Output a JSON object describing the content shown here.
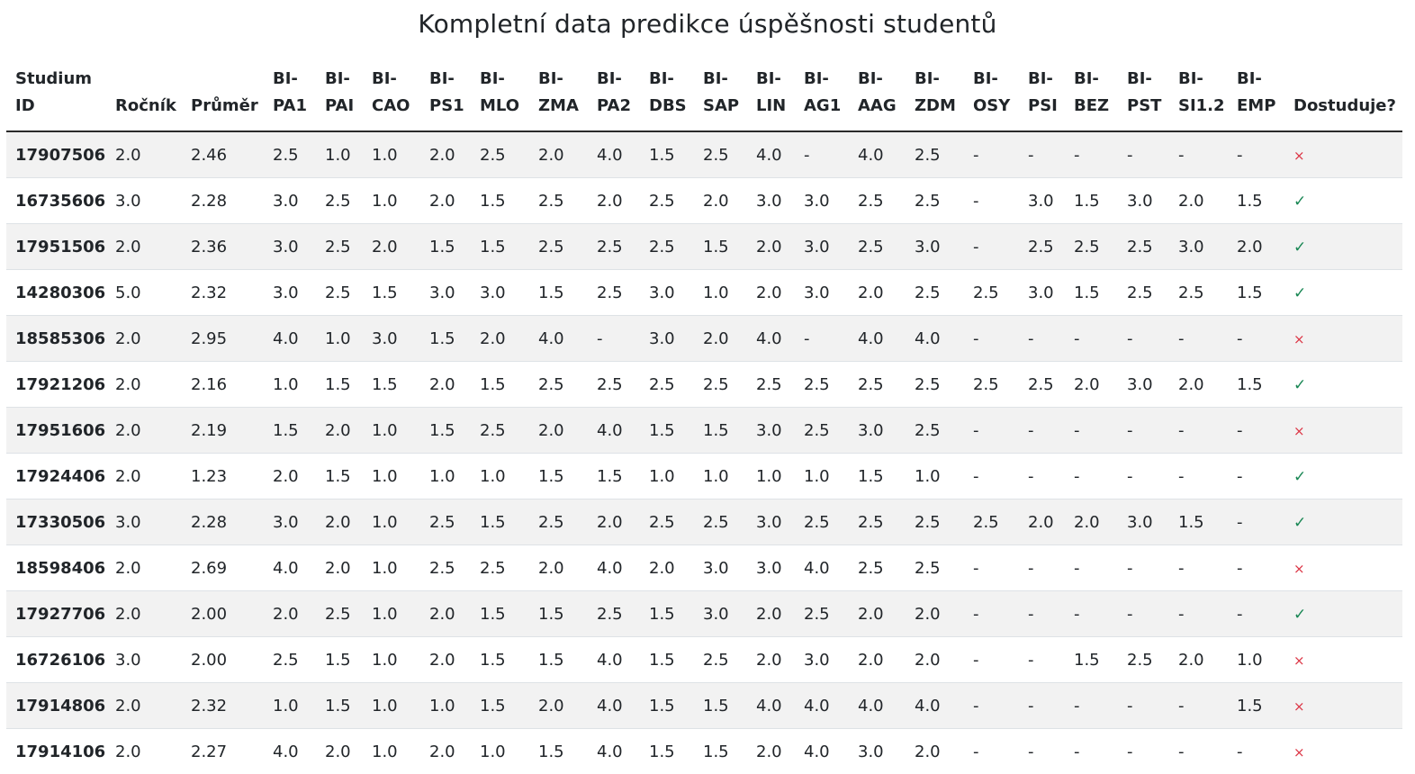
{
  "title": "Kompletní data predikce úspěšnosti studentů",
  "columns": [
    [
      "Studium",
      "ID"
    ],
    [
      "",
      "Ročník"
    ],
    [
      "",
      "Průměr"
    ],
    [
      "BI-",
      "PA1"
    ],
    [
      "BI-",
      "PAI"
    ],
    [
      "BI-",
      "CAO"
    ],
    [
      "BI-",
      "PS1"
    ],
    [
      "BI-",
      "MLO"
    ],
    [
      "BI-",
      "ZMA"
    ],
    [
      "BI-",
      "PA2"
    ],
    [
      "BI-",
      "DBS"
    ],
    [
      "BI-",
      "SAP"
    ],
    [
      "BI-",
      "LIN"
    ],
    [
      "BI-",
      "AG1"
    ],
    [
      "BI-",
      "AAG"
    ],
    [
      "BI-",
      "ZDM"
    ],
    [
      "BI-",
      "OSY"
    ],
    [
      "BI-",
      "PSI"
    ],
    [
      "BI-",
      "BEZ"
    ],
    [
      "BI-",
      "PST"
    ],
    [
      "BI-",
      "SI1.2"
    ],
    [
      "BI-",
      "EMP"
    ],
    [
      "",
      "Dostuduje?"
    ]
  ],
  "status_glyphs": {
    "yes": "✓",
    "no": "×"
  },
  "colors": {
    "yes": "#198754",
    "no": "#dc3545",
    "stripe": "#f2f2f2"
  },
  "rows": [
    [
      "17907506",
      "2.0",
      "2.46",
      "2.5",
      "1.0",
      "1.0",
      "2.0",
      "2.5",
      "2.0",
      "4.0",
      "1.5",
      "2.5",
      "4.0",
      "-",
      "4.0",
      "2.5",
      "-",
      "-",
      "-",
      "-",
      "-",
      "-",
      "no"
    ],
    [
      "16735606",
      "3.0",
      "2.28",
      "3.0",
      "2.5",
      "1.0",
      "2.0",
      "1.5",
      "2.5",
      "2.0",
      "2.5",
      "2.0",
      "3.0",
      "3.0",
      "2.5",
      "2.5",
      "-",
      "3.0",
      "1.5",
      "3.0",
      "2.0",
      "1.5",
      "yes"
    ],
    [
      "17951506",
      "2.0",
      "2.36",
      "3.0",
      "2.5",
      "2.0",
      "1.5",
      "1.5",
      "2.5",
      "2.5",
      "2.5",
      "1.5",
      "2.0",
      "3.0",
      "2.5",
      "3.0",
      "-",
      "2.5",
      "2.5",
      "2.5",
      "3.0",
      "2.0",
      "yes"
    ],
    [
      "14280306",
      "5.0",
      "2.32",
      "3.0",
      "2.5",
      "1.5",
      "3.0",
      "3.0",
      "1.5",
      "2.5",
      "3.0",
      "1.0",
      "2.0",
      "3.0",
      "2.0",
      "2.5",
      "2.5",
      "3.0",
      "1.5",
      "2.5",
      "2.5",
      "1.5",
      "yes"
    ],
    [
      "18585306",
      "2.0",
      "2.95",
      "4.0",
      "1.0",
      "3.0",
      "1.5",
      "2.0",
      "4.0",
      "-",
      "3.0",
      "2.0",
      "4.0",
      "-",
      "4.0",
      "4.0",
      "-",
      "-",
      "-",
      "-",
      "-",
      "-",
      "no"
    ],
    [
      "17921206",
      "2.0",
      "2.16",
      "1.0",
      "1.5",
      "1.5",
      "2.0",
      "1.5",
      "2.5",
      "2.5",
      "2.5",
      "2.5",
      "2.5",
      "2.5",
      "2.5",
      "2.5",
      "2.5",
      "2.5",
      "2.0",
      "3.0",
      "2.0",
      "1.5",
      "yes"
    ],
    [
      "17951606",
      "2.0",
      "2.19",
      "1.5",
      "2.0",
      "1.0",
      "1.5",
      "2.5",
      "2.0",
      "4.0",
      "1.5",
      "1.5",
      "3.0",
      "2.5",
      "3.0",
      "2.5",
      "-",
      "-",
      "-",
      "-",
      "-",
      "-",
      "no"
    ],
    [
      "17924406",
      "2.0",
      "1.23",
      "2.0",
      "1.5",
      "1.0",
      "1.0",
      "1.0",
      "1.5",
      "1.5",
      "1.0",
      "1.0",
      "1.0",
      "1.0",
      "1.5",
      "1.0",
      "-",
      "-",
      "-",
      "-",
      "-",
      "-",
      "yes"
    ],
    [
      "17330506",
      "3.0",
      "2.28",
      "3.0",
      "2.0",
      "1.0",
      "2.5",
      "1.5",
      "2.5",
      "2.0",
      "2.5",
      "2.5",
      "3.0",
      "2.5",
      "2.5",
      "2.5",
      "2.5",
      "2.0",
      "2.0",
      "3.0",
      "1.5",
      "-",
      "yes"
    ],
    [
      "18598406",
      "2.0",
      "2.69",
      "4.0",
      "2.0",
      "1.0",
      "2.5",
      "2.5",
      "2.0",
      "4.0",
      "2.0",
      "3.0",
      "3.0",
      "4.0",
      "2.5",
      "2.5",
      "-",
      "-",
      "-",
      "-",
      "-",
      "-",
      "no"
    ],
    [
      "17927706",
      "2.0",
      "2.00",
      "2.0",
      "2.5",
      "1.0",
      "2.0",
      "1.5",
      "1.5",
      "2.5",
      "1.5",
      "3.0",
      "2.0",
      "2.5",
      "2.0",
      "2.0",
      "-",
      "-",
      "-",
      "-",
      "-",
      "-",
      "yes"
    ],
    [
      "16726106",
      "3.0",
      "2.00",
      "2.5",
      "1.5",
      "1.0",
      "2.0",
      "1.5",
      "1.5",
      "4.0",
      "1.5",
      "2.5",
      "2.0",
      "3.0",
      "2.0",
      "2.0",
      "-",
      "-",
      "1.5",
      "2.5",
      "2.0",
      "1.0",
      "no"
    ],
    [
      "17914806",
      "2.0",
      "2.32",
      "1.0",
      "1.5",
      "1.0",
      "1.0",
      "1.5",
      "2.0",
      "4.0",
      "1.5",
      "1.5",
      "4.0",
      "4.0",
      "4.0",
      "4.0",
      "-",
      "-",
      "-",
      "-",
      "-",
      "1.5",
      "no"
    ],
    [
      "17914106",
      "2.0",
      "2.27",
      "4.0",
      "2.0",
      "1.0",
      "2.0",
      "1.0",
      "1.5",
      "4.0",
      "1.5",
      "1.5",
      "2.0",
      "4.0",
      "3.0",
      "2.0",
      "-",
      "-",
      "-",
      "-",
      "-",
      "-",
      "no"
    ]
  ]
}
